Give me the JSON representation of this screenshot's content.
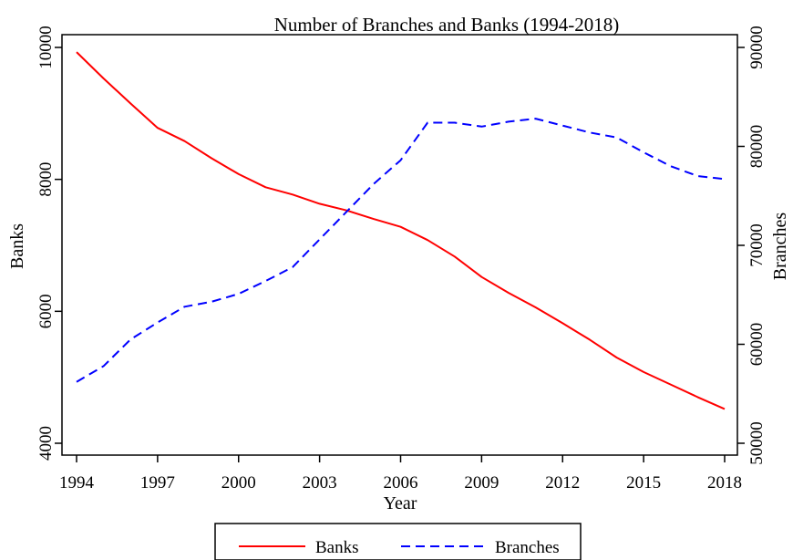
{
  "chart_data": {
    "type": "line",
    "title": "Number of Branches and Banks (1994-2018)",
    "xlabel": "Year",
    "ylabel_left": "Banks",
    "ylabel_right": "Branches",
    "xlim": [
      1994,
      2018
    ],
    "ylim_left": [
      4000,
      10000
    ],
    "ylim_right": [
      50000,
      90000
    ],
    "x_ticks": [
      1994,
      1997,
      2000,
      2003,
      2006,
      2009,
      2012,
      2015,
      2018
    ],
    "y_ticks_left": [
      4000,
      6000,
      8000,
      10000
    ],
    "y_ticks_right": [
      50000,
      60000,
      70000,
      80000,
      90000
    ],
    "grid": false,
    "legend_position": "bottom",
    "x": [
      1994,
      1995,
      1996,
      1997,
      1998,
      1999,
      2000,
      2001,
      2002,
      2003,
      2004,
      2005,
      2006,
      2007,
      2008,
      2009,
      2010,
      2011,
      2012,
      2013,
      2014,
      2015,
      2016,
      2017,
      2018
    ],
    "series": [
      {
        "name": "Banks",
        "axis": "left",
        "color": "#ff0000",
        "style": "solid",
        "values": [
          9930,
          9530,
          9150,
          8780,
          8580,
          8320,
          8080,
          7880,
          7770,
          7630,
          7530,
          7400,
          7280,
          7080,
          6830,
          6520,
          6280,
          6060,
          5820,
          5570,
          5300,
          5080,
          4890,
          4700,
          4520
        ]
      },
      {
        "name": "Branches",
        "axis": "right",
        "color": "#0000ff",
        "style": "dashed",
        "values": [
          56200,
          57800,
          60500,
          62200,
          63800,
          64300,
          65100,
          66400,
          67800,
          70600,
          73400,
          76200,
          78600,
          82400,
          82400,
          82000,
          82500,
          82800,
          82100,
          81400,
          80900,
          79400,
          78000,
          77000,
          76700
        ]
      }
    ]
  }
}
